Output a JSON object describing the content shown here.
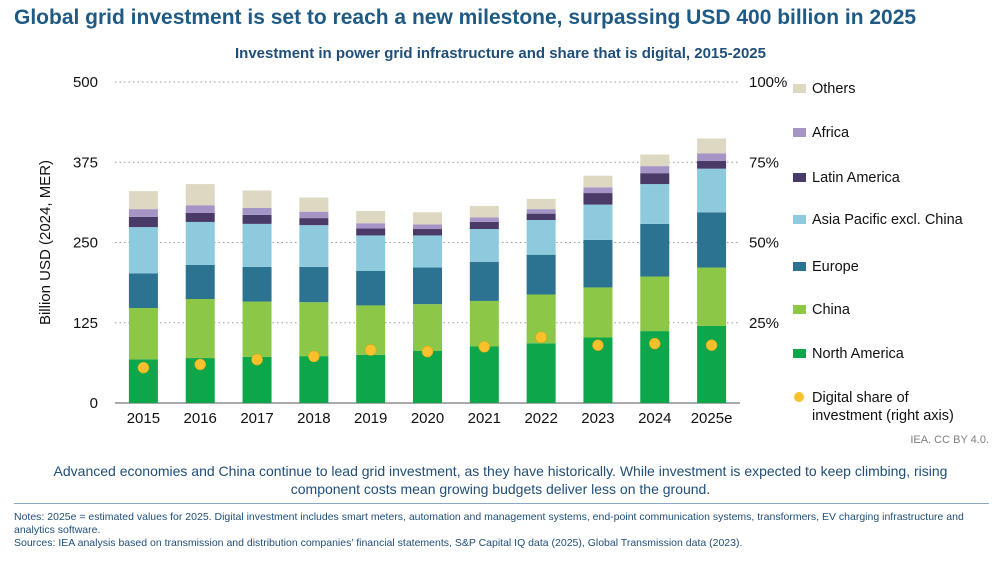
{
  "headline": "Global grid investment is set to reach a new milestone, surpassing USD 400 billion in 2025",
  "caption": "Advanced economies and China continue to lead grid investment, as they have historically. While investment is expected to keep climbing, rising component costs mean growing budgets deliver less on the ground.",
  "credit": "IEA. CC BY 4.0.",
  "notes": "Notes: 2025e = estimated values for 2025. Digital investment includes smart meters, automation and management systems, end-point communication systems, transformers, EV charging infrastructure and analytics software.",
  "sources": "Sources: IEA analysis based on transmission and distribution companies’ financial statements, S&P Capital IQ data (2025), Global Transmission data (2023).",
  "colors": {
    "Others": "#ddd8c2",
    "Africa": "#a595c6",
    "Latin America": "#4a3a68",
    "Asia Pacific excl. China": "#8dcadd",
    "Europe": "#2b7390",
    "China": "#8cc748",
    "North America": "#0da64a",
    "Digital share": "#fbc02d"
  },
  "chart_data": {
    "type": "bar",
    "stacked": true,
    "title": "Investment in power grid infrastructure and share that is digital, 2015-2025",
    "ylabel": "Billion USD (2024, MER)",
    "ylim": [
      0,
      500
    ],
    "yticks": [
      "0",
      "125",
      "250",
      "375",
      "500"
    ],
    "y2lim": [
      0,
      1
    ],
    "y2ticks": [
      "",
      "25%",
      "50%",
      "75%",
      "100%"
    ],
    "categories": [
      "2015",
      "2016",
      "2017",
      "2018",
      "2019",
      "2020",
      "2021",
      "2022",
      "2023",
      "2024",
      "2025e"
    ],
    "series": [
      {
        "name": "North America",
        "values": [
          68,
          70,
          72,
          73,
          75,
          81,
          88,
          93,
          102,
          112,
          120
        ]
      },
      {
        "name": "China",
        "values": [
          80,
          92,
          86,
          84,
          77,
          73,
          71,
          76,
          78,
          85,
          91
        ]
      },
      {
        "name": "Europe",
        "values": [
          54,
          53,
          54,
          55,
          54,
          57,
          61,
          62,
          74,
          82,
          86
        ]
      },
      {
        "name": "Asia Pacific excl. China",
        "values": [
          72,
          67,
          67,
          65,
          55,
          50,
          51,
          54,
          55,
          62,
          68
        ]
      },
      {
        "name": "Latin America",
        "values": [
          16,
          14,
          14,
          11,
          11,
          10,
          11,
          10,
          18,
          17,
          12
        ]
      },
      {
        "name": "Africa",
        "values": [
          12,
          12,
          11,
          10,
          8,
          7,
          7,
          7,
          9,
          11,
          12
        ]
      },
      {
        "name": "Others",
        "values": [
          28,
          33,
          27,
          22,
          19,
          19,
          18,
          16,
          18,
          18,
          23
        ]
      }
    ],
    "line_series": {
      "name": "Digital share of investment (right axis)",
      "axis": "right",
      "values": [
        0.11,
        0.12,
        0.135,
        0.145,
        0.165,
        0.16,
        0.175,
        0.205,
        0.18,
        0.185,
        0.18
      ]
    },
    "legend": [
      "Others",
      "Africa",
      "Latin America",
      "Asia Pacific excl. China",
      "Europe",
      "China",
      "North America",
      "Digital share of investment (right axis)"
    ],
    "legend_position": "right"
  }
}
